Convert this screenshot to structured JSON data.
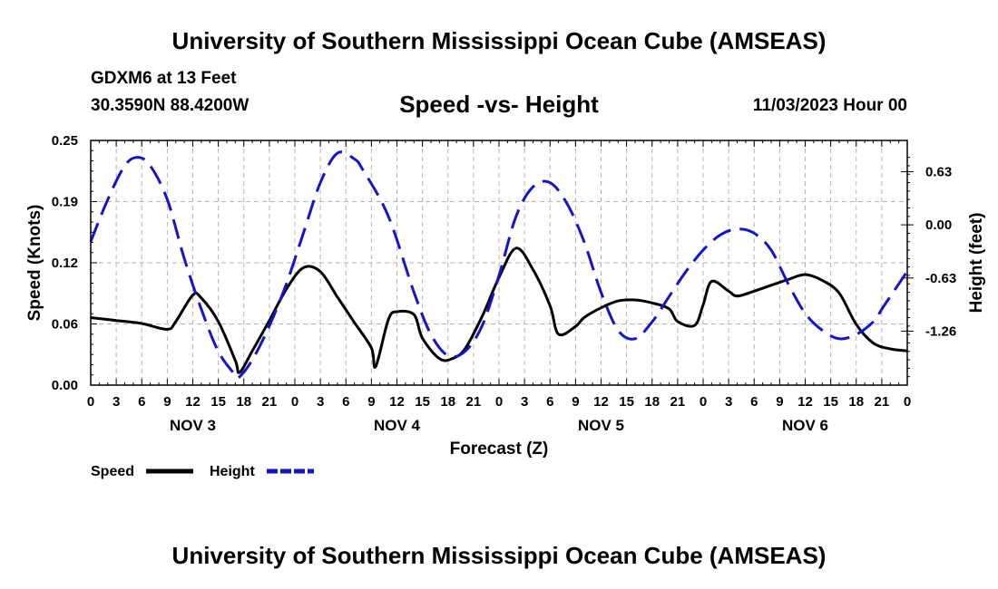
{
  "header": {
    "title": "University of Southern Mississippi Ocean Cube (AMSEAS)",
    "station": "GDXM6 at 13 Feet",
    "coords": "30.3590N  88.4200W",
    "subtitle": "Speed -vs- Height",
    "datetime": "11/03/2023 Hour 00"
  },
  "footer": {
    "title": "University of Southern Mississippi Ocean Cube (AMSEAS)"
  },
  "chart_data": {
    "type": "line",
    "xlabel": "Forecast (Z)",
    "ylabel": "Speed (Knots)",
    "ylabel_right": "Height (feet)",
    "xlim": [
      0,
      96
    ],
    "ylim": [
      0,
      0.25
    ],
    "ylim_right": [
      -1.9,
      1.0
    ],
    "x_tick_labels": [
      "0",
      "3",
      "6",
      "9",
      "12",
      "15",
      "18",
      "21",
      "0",
      "3",
      "6",
      "9",
      "12",
      "15",
      "18",
      "21",
      "0",
      "3",
      "6",
      "9",
      "12",
      "15",
      "18",
      "21",
      "0",
      "3",
      "6",
      "9",
      "12",
      "15",
      "18",
      "21",
      "0"
    ],
    "y_ticks": [
      "0.00",
      "0.06",
      "0.12",
      "0.19",
      "0.25"
    ],
    "y_ticks_right": [
      "0.63",
      "0.00",
      "-0.63",
      "-1.26"
    ],
    "days": [
      {
        "label": "NOV 3",
        "center_hour": 12
      },
      {
        "label": "NOV 4",
        "center_hour": 36
      },
      {
        "label": "NOV 5",
        "center_hour": 60
      },
      {
        "label": "NOV 6",
        "center_hour": 84
      }
    ],
    "series": [
      {
        "name": "Speed",
        "axis": "left",
        "color": "#000000",
        "dash": "solid",
        "x": [
          0,
          3,
          6,
          9,
          10,
          12,
          13,
          15,
          17,
          17.5,
          19,
          21,
          23,
          25,
          27,
          29,
          31,
          33,
          33.5,
          35,
          36,
          38,
          39,
          41,
          42.5,
          44,
          46,
          48,
          50,
          52,
          54,
          55,
          57,
          58,
          60,
          62,
          64,
          66,
          68,
          69,
          71,
          72,
          73,
          75,
          76,
          78,
          80,
          82,
          84,
          86,
          88,
          90,
          92,
          94,
          96
        ],
        "y": [
          0.069,
          0.066,
          0.063,
          0.057,
          0.065,
          0.092,
          0.089,
          0.065,
          0.025,
          0.013,
          0.035,
          0.066,
          0.098,
          0.12,
          0.116,
          0.09,
          0.064,
          0.038,
          0.019,
          0.067,
          0.075,
          0.072,
          0.048,
          0.027,
          0.027,
          0.037,
          0.07,
          0.11,
          0.14,
          0.118,
          0.081,
          0.052,
          0.06,
          0.069,
          0.079,
          0.086,
          0.087,
          0.084,
          0.078,
          0.065,
          0.061,
          0.082,
          0.106,
          0.096,
          0.091,
          0.096,
          0.102,
          0.108,
          0.113,
          0.107,
          0.094,
          0.062,
          0.043,
          0.037,
          0.035
        ]
      },
      {
        "name": "Height",
        "axis": "right",
        "color": "#1515c8",
        "dash": "dashed",
        "x": [
          0,
          2,
          4,
          5.5,
          7,
          9,
          11,
          13,
          15,
          17,
          17.5,
          19,
          21,
          23,
          25,
          27,
          29,
          31,
          32,
          35,
          38,
          40,
          42,
          44,
          46,
          48,
          50,
          52,
          54,
          56,
          58,
          60,
          62,
          64,
          66,
          68,
          70,
          72,
          74,
          76,
          78,
          80,
          82,
          84,
          86,
          88,
          90,
          92,
          93,
          94,
          96
        ],
        "y": [
          -0.2,
          0.3,
          0.7,
          0.8,
          0.7,
          0.3,
          -0.4,
          -1.0,
          -1.5,
          -1.78,
          -1.8,
          -1.6,
          -1.2,
          -0.7,
          -0.1,
          0.5,
          0.85,
          0.78,
          0.65,
          0.1,
          -0.8,
          -1.3,
          -1.55,
          -1.5,
          -1.2,
          -0.6,
          0.1,
          0.45,
          0.5,
          0.25,
          -0.2,
          -0.8,
          -1.25,
          -1.35,
          -1.15,
          -0.85,
          -0.55,
          -0.3,
          -0.12,
          -0.05,
          -0.1,
          -0.3,
          -0.7,
          -1.05,
          -1.25,
          -1.35,
          -1.3,
          -1.15,
          -1.0,
          -0.85,
          -0.55
        ]
      }
    ],
    "legend": [
      {
        "label": "Speed",
        "color": "#000000",
        "dash": "solid"
      },
      {
        "label": "Height",
        "color": "#1515c8",
        "dash": "dashed"
      }
    ]
  }
}
